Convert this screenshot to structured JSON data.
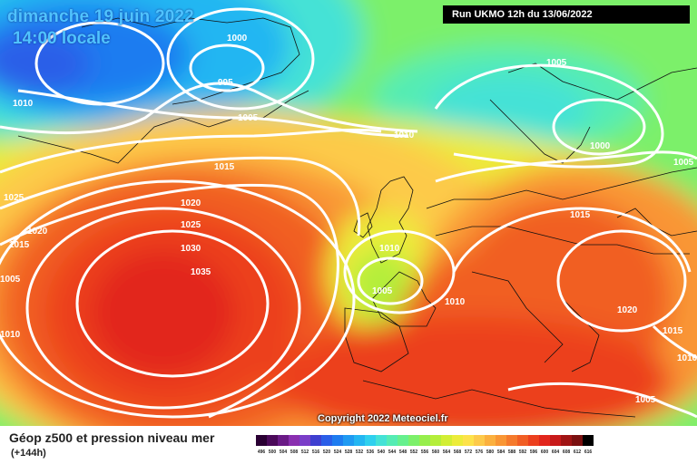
{
  "header": {
    "date_title": "dimanche 19 juin 2022",
    "time_label": "14:00 locale",
    "run_info": "Run UKMO 12h du 13/06/2022",
    "copyright": "Copyright 2022 Meteociel.fr"
  },
  "legend": {
    "title": "Géop z500 et pression niveau mer",
    "subtitle": "(+144h)",
    "scale_values": [
      "496",
      "500",
      "504",
      "508",
      "512",
      "516",
      "520",
      "524",
      "528",
      "532",
      "536",
      "540",
      "544",
      "548",
      "552",
      "556",
      "560",
      "564",
      "568",
      "572",
      "576",
      "580",
      "584",
      "588",
      "592",
      "596",
      "600",
      "604",
      "608",
      "612",
      "616"
    ],
    "scale_colors": [
      "#2a0033",
      "#4b0a5a",
      "#6a1a86",
      "#8a2fb0",
      "#7a3dc8",
      "#3f3fd0",
      "#2a5ee8",
      "#1e7cf0",
      "#1f9af2",
      "#23b6f2",
      "#2fd0ee",
      "#44e2d6",
      "#55ecb4",
      "#66f08e",
      "#7cf06a",
      "#96ee4c",
      "#b4ee3a",
      "#d2ee34",
      "#ecec3a",
      "#fde24a",
      "#fdca4a",
      "#fbb03e",
      "#f99634",
      "#f57a2c",
      "#f15e24",
      "#ec401e",
      "#e2261c",
      "#c81a1a",
      "#a01414",
      "#7a1010",
      "#000000"
    ]
  },
  "isobar_labels": [
    "1000",
    "995",
    "1010",
    "1005",
    "1015",
    "1025",
    "1020",
    "1030",
    "1035",
    "1010",
    "1005",
    "1010",
    "1015",
    "1020",
    "1015",
    "1005",
    "1010",
    "1005",
    "1000",
    "1005",
    "1010",
    "1005",
    "1010",
    "1015",
    "1020",
    "1015",
    "1005",
    "1010"
  ],
  "colors": {
    "isobar": "#ffffff",
    "coast": "#111111",
    "title_text": "#4fc3ff"
  }
}
